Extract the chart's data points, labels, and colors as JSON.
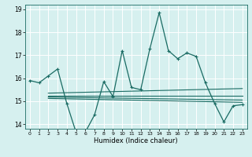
{
  "xlabel": "Humidex (Indice chaleur)",
  "background_color": "#d6f0ef",
  "grid_color": "#c8e8e6",
  "line_color": "#1a6b63",
  "xlim": [
    -0.5,
    23.5
  ],
  "ylim": [
    13.8,
    19.2
  ],
  "yticks": [
    14,
    15,
    16,
    17,
    18,
    19
  ],
  "xticks": [
    0,
    1,
    2,
    3,
    4,
    5,
    6,
    7,
    8,
    9,
    10,
    11,
    12,
    13,
    14,
    15,
    16,
    17,
    18,
    19,
    20,
    21,
    22,
    23
  ],
  "main_series_x": [
    0,
    1,
    2,
    3,
    4,
    5,
    6,
    7,
    8,
    9,
    10,
    11,
    12,
    13,
    14,
    15,
    16,
    17,
    18,
    19,
    20,
    21,
    22,
    23
  ],
  "main_series_y": [
    15.9,
    15.8,
    16.1,
    16.4,
    14.9,
    13.65,
    13.65,
    14.4,
    15.85,
    15.2,
    17.2,
    15.6,
    15.5,
    17.3,
    18.85,
    17.2,
    16.85,
    17.1,
    16.95,
    15.8,
    14.9,
    14.1,
    14.8,
    14.85
  ],
  "flat_lines": [
    {
      "x1": 2,
      "x2": 23,
      "y1": 15.35,
      "y2": 15.55
    },
    {
      "x1": 2,
      "x2": 23,
      "y1": 15.25,
      "y2": 15.25
    },
    {
      "x1": 2,
      "x2": 23,
      "y1": 15.18,
      "y2": 15.05
    },
    {
      "x1": 2,
      "x2": 23,
      "y1": 15.12,
      "y2": 14.95
    }
  ]
}
